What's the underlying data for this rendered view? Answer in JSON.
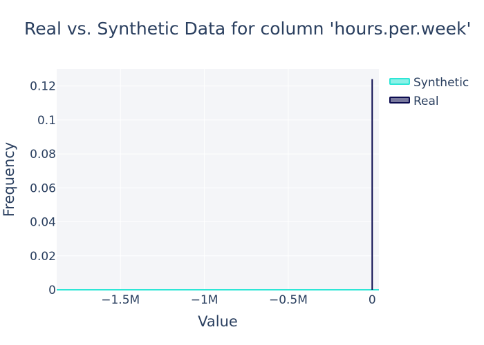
{
  "chart_data": {
    "type": "area",
    "title": "Real vs. Synthetic Data for column 'hours.per.week'",
    "xlabel": "Value",
    "ylabel": "Frequency",
    "xlim": [
      -1880000,
      40000
    ],
    "ylim": [
      0,
      0.13
    ],
    "x_ticks": [
      {
        "value": -1500000,
        "label": "−1.5M"
      },
      {
        "value": -1000000,
        "label": "−1M"
      },
      {
        "value": -500000,
        "label": "−0.5M"
      },
      {
        "value": 0,
        "label": "0"
      }
    ],
    "y_ticks": [
      {
        "value": 0,
        "label": "0"
      },
      {
        "value": 0.02,
        "label": "0.02"
      },
      {
        "value": 0.04,
        "label": "0.04"
      },
      {
        "value": 0.06,
        "label": "0.06"
      },
      {
        "value": 0.08,
        "label": "0.08"
      },
      {
        "value": 0.1,
        "label": "0.1"
      },
      {
        "value": 0.12,
        "label": "0.12"
      }
    ],
    "grid": true,
    "legend_position": "top-right",
    "plot_background": "#f4f5f8",
    "series": [
      {
        "name": "Synthetic",
        "color": "#2ee6d6",
        "x": [
          -1880000,
          40000
        ],
        "y": [
          0,
          0
        ]
      },
      {
        "name": "Real",
        "color": "#0b0b4f",
        "x": [
          0,
          0
        ],
        "y": [
          0,
          0.124
        ]
      }
    ]
  }
}
